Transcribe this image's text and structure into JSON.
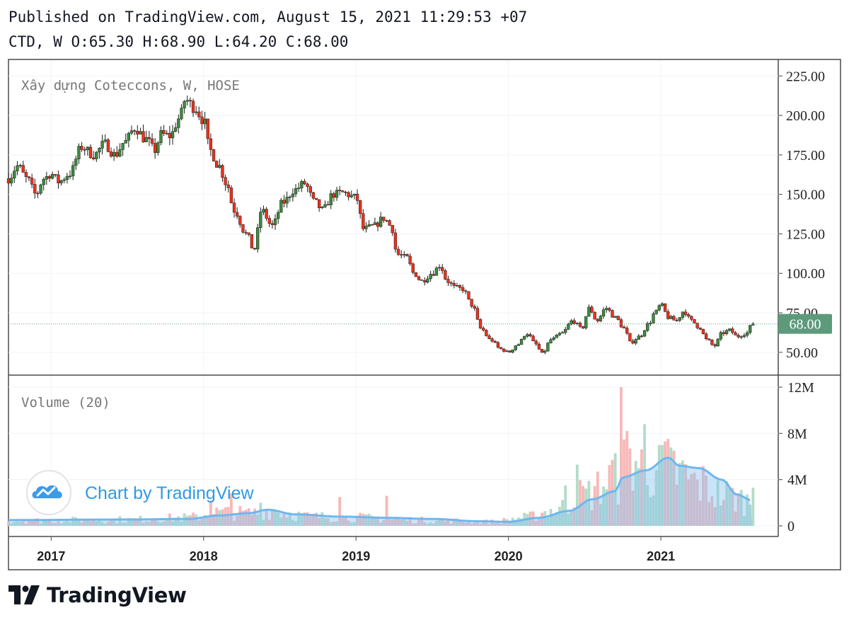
{
  "header": {
    "published": "Published on TradingView.com, August 15, 2021 11:29:53 +07",
    "ohlc": "CTD, W O:65.30 H:68.90 L:64.20 C:68.00"
  },
  "chart_data": [
    {
      "type": "candlestick",
      "title": "Xây dựng Coteccons, W, HOSE",
      "y_ticks": [
        "225.00",
        "200.00",
        "175.00",
        "150.00",
        "125.00",
        "100.00",
        "75.00",
        "50.00"
      ],
      "y_tick_values": [
        225,
        200,
        175,
        150,
        125,
        100,
        75,
        50
      ],
      "ylim": [
        36,
        235
      ],
      "last_price_label": "68.00",
      "last_price": 68.0,
      "x_tick_labels": [
        "2017",
        "2018",
        "2019",
        "2020",
        "2021"
      ],
      "x_tick_years": [
        2017,
        2018,
        2019,
        2020,
        2021
      ],
      "xlim": [
        2016.72,
        2021.77
      ],
      "up_color": "#3d8b3d",
      "down_color": "#f0301b",
      "close_anchors": [
        [
          2016.72,
          160
        ],
        [
          2016.78,
          168
        ],
        [
          2016.84,
          160
        ],
        [
          2016.9,
          150
        ],
        [
          2016.95,
          160
        ],
        [
          2017.0,
          163
        ],
        [
          2017.05,
          158
        ],
        [
          2017.12,
          163
        ],
        [
          2017.2,
          180
        ],
        [
          2017.28,
          175
        ],
        [
          2017.35,
          182
        ],
        [
          2017.42,
          175
        ],
        [
          2017.48,
          183
        ],
        [
          2017.55,
          192
        ],
        [
          2017.62,
          185
        ],
        [
          2017.68,
          178
        ],
        [
          2017.72,
          188
        ],
        [
          2017.78,
          187
        ],
        [
          2017.84,
          198
        ],
        [
          2017.88,
          210
        ],
        [
          2017.94,
          205
        ],
        [
          2018.0,
          197
        ],
        [
          2018.04,
          178
        ],
        [
          2018.1,
          168
        ],
        [
          2018.15,
          157
        ],
        [
          2018.2,
          140
        ],
        [
          2018.28,
          125
        ],
        [
          2018.33,
          115
        ],
        [
          2018.38,
          140
        ],
        [
          2018.45,
          130
        ],
        [
          2018.52,
          145
        ],
        [
          2018.6,
          153
        ],
        [
          2018.66,
          157
        ],
        [
          2018.73,
          145
        ],
        [
          2018.78,
          140
        ],
        [
          2018.85,
          150
        ],
        [
          2018.91,
          151
        ],
        [
          2019.0,
          148
        ],
        [
          2019.05,
          128
        ],
        [
          2019.12,
          130
        ],
        [
          2019.18,
          135
        ],
        [
          2019.23,
          130
        ],
        [
          2019.27,
          112
        ],
        [
          2019.33,
          110
        ],
        [
          2019.38,
          100
        ],
        [
          2019.43,
          95
        ],
        [
          2019.5,
          100
        ],
        [
          2019.55,
          105
        ],
        [
          2019.6,
          95
        ],
        [
          2019.65,
          91
        ],
        [
          2019.7,
          90
        ],
        [
          2019.76,
          80
        ],
        [
          2019.82,
          65
        ],
        [
          2019.88,
          58
        ],
        [
          2019.95,
          52
        ],
        [
          2020.0,
          50
        ],
        [
          2020.06,
          55
        ],
        [
          2020.12,
          62
        ],
        [
          2020.18,
          55
        ],
        [
          2020.22,
          49
        ],
        [
          2020.28,
          58
        ],
        [
          2020.35,
          62
        ],
        [
          2020.42,
          70
        ],
        [
          2020.48,
          65
        ],
        [
          2020.53,
          78
        ],
        [
          2020.58,
          70
        ],
        [
          2020.64,
          78
        ],
        [
          2020.7,
          72
        ],
        [
          2020.76,
          65
        ],
        [
          2020.8,
          56
        ],
        [
          2020.86,
          60
        ],
        [
          2020.92,
          68
        ],
        [
          2020.96,
          75
        ],
        [
          2021.0,
          80
        ],
        [
          2021.05,
          72
        ],
        [
          2021.1,
          70
        ],
        [
          2021.15,
          76
        ],
        [
          2021.2,
          70
        ],
        [
          2021.25,
          66
        ],
        [
          2021.3,
          58
        ],
        [
          2021.35,
          54
        ],
        [
          2021.4,
          62
        ],
        [
          2021.45,
          64
        ],
        [
          2021.5,
          60
        ],
        [
          2021.56,
          62
        ],
        [
          2021.6,
          68
        ]
      ]
    },
    {
      "type": "bar",
      "title": "Volume (20)",
      "y_ticks": [
        "12M",
        "8M",
        "4M",
        "0"
      ],
      "y_tick_values": [
        12,
        8,
        4,
        0
      ],
      "ylim": [
        0,
        12.2
      ],
      "unit": "M shares",
      "ma_period": 20,
      "volume_anchors_m": [
        [
          2016.72,
          0.5
        ],
        [
          2017.5,
          0.6
        ],
        [
          2017.9,
          0.8
        ],
        [
          2018.1,
          1.3
        ],
        [
          2018.3,
          1.2
        ],
        [
          2018.45,
          1.5
        ],
        [
          2018.7,
          0.9
        ],
        [
          2019.0,
          0.8
        ],
        [
          2019.3,
          0.6
        ],
        [
          2019.6,
          0.5
        ],
        [
          2019.9,
          0.4
        ],
        [
          2020.1,
          0.8
        ],
        [
          2020.3,
          1.5
        ],
        [
          2020.5,
          3.0
        ],
        [
          2020.7,
          4.5
        ],
        [
          2020.8,
          6.5
        ],
        [
          2020.9,
          5.5
        ],
        [
          2021.0,
          6.0
        ],
        [
          2021.1,
          5.0
        ],
        [
          2021.25,
          4.0
        ],
        [
          2021.4,
          3.0
        ],
        [
          2021.6,
          2.3
        ]
      ],
      "volume_ma_anchors_m": [
        [
          2016.72,
          0.5
        ],
        [
          2017.5,
          0.55
        ],
        [
          2017.9,
          0.6
        ],
        [
          2018.1,
          0.9
        ],
        [
          2018.3,
          1.1
        ],
        [
          2018.42,
          1.4
        ],
        [
          2018.6,
          1.0
        ],
        [
          2018.9,
          0.8
        ],
        [
          2019.2,
          0.7
        ],
        [
          2019.5,
          0.6
        ],
        [
          2019.8,
          0.4
        ],
        [
          2020.0,
          0.35
        ],
        [
          2020.2,
          0.7
        ],
        [
          2020.4,
          1.3
        ],
        [
          2020.55,
          2.3
        ],
        [
          2020.7,
          3.0
        ],
        [
          2020.75,
          4.2
        ],
        [
          2020.9,
          4.8
        ],
        [
          2021.05,
          5.9
        ],
        [
          2021.12,
          5.2
        ],
        [
          2021.25,
          5.0
        ],
        [
          2021.4,
          4.0
        ],
        [
          2021.5,
          2.7
        ],
        [
          2021.6,
          2.2
        ]
      ],
      "volume_spikes_m": [
        [
          2018.05,
          2.2,
          "down"
        ],
        [
          2018.18,
          2.8,
          "down"
        ],
        [
          2018.38,
          2.0,
          "up"
        ],
        [
          2018.9,
          2.5,
          "up"
        ],
        [
          2019.2,
          2.6,
          "down"
        ],
        [
          2020.38,
          3.5,
          "down"
        ],
        [
          2020.45,
          5.3,
          "up"
        ],
        [
          2020.68,
          5.7,
          "down"
        ],
        [
          2020.74,
          12.0,
          "down"
        ],
        [
          2020.78,
          8.2,
          "down"
        ],
        [
          2020.9,
          8.8,
          "up"
        ],
        [
          2021.0,
          7.0,
          "down"
        ],
        [
          2021.08,
          6.5,
          "up"
        ],
        [
          2021.6,
          3.3,
          "up"
        ]
      ]
    }
  ],
  "watermark": {
    "text": "Chart by TradingView",
    "logo": "tradingview-cloud-icon"
  },
  "footer": {
    "brand": "TradingView",
    "logo": "tradingview-tv-logo"
  },
  "colors": {
    "up": "#3d8b3d",
    "down": "#f0301b",
    "vol_up": "#b3dcc8",
    "vol_down": "#f7b8b8",
    "ma_line": "#6fb7ee",
    "ma_fill": "#8ac4ef",
    "price_badge": "#5d9a7c",
    "watermark": "#2e9ae6"
  }
}
